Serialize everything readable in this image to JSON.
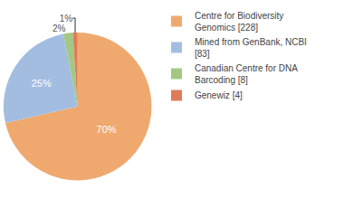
{
  "chart_data": {
    "type": "pie",
    "categories": [
      "Centre for Biodiversity Genomics [228]",
      "Mined from GenBank, NCBI [83]",
      "Canadian Centre for DNA Barcoding [8]",
      "Genewiz [4]"
    ],
    "values": [
      70,
      25,
      2,
      1
    ],
    "value_labels": [
      "70%",
      "25%",
      "2%",
      "1%"
    ],
    "colors": [
      "#efa96f",
      "#a3bde0",
      "#a3c883",
      "#e07b5a"
    ],
    "data_labels": true,
    "legend": "top right"
  }
}
